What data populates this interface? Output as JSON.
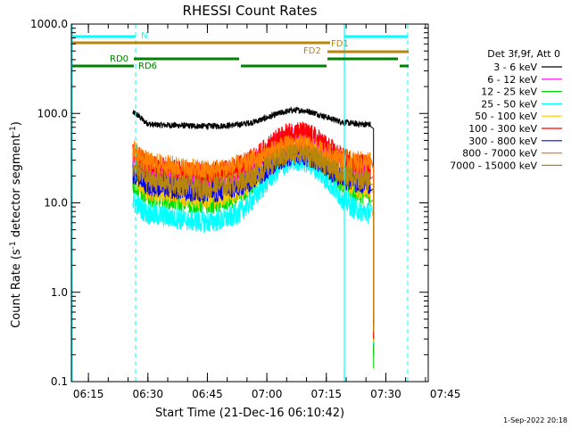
{
  "chart_data": {
    "type": "line",
    "title": "RHESSI Count Rates",
    "xlabel": "Start Time (21-Dec-16 06:10:42)",
    "ylabel_main": "Count Rate (s",
    "ylabel_sup": "-1",
    "ylabel_rest": " detector segment",
    "ylabel_sup2": "-1",
    "ylabel_end": ")",
    "yscale": "log",
    "ylim": [
      0.1,
      1000
    ],
    "xlim_minutes": [
      0,
      90
    ],
    "x_ticks": [
      {
        "label": "06:15",
        "minute": 4.3
      },
      {
        "label": "06:30",
        "minute": 19.3
      },
      {
        "label": "06:45",
        "minute": 34.3
      },
      {
        "label": "07:00",
        "minute": 49.3
      },
      {
        "label": "07:15",
        "minute": 64.3
      },
      {
        "label": "07:30",
        "minute": 79.3
      },
      {
        "label": "07:45",
        "minute": 94.3
      }
    ],
    "y_ticks": [
      {
        "label": "1000.0",
        "value": 1000
      },
      {
        "label": "100.0",
        "value": 100
      },
      {
        "label": "10.0",
        "value": 10
      },
      {
        "label": "1.0",
        "value": 1
      },
      {
        "label": "0.1",
        "value": 0.1
      }
    ],
    "legend_header": "Det 3f,9f, Att 0",
    "legend_placement": "right",
    "series": [
      {
        "name": "3 - 6 keV",
        "color": "#000000",
        "level": 75,
        "bump": 1.45
      },
      {
        "name": "6 - 12 keV",
        "color": "#ff00ff",
        "level": 22,
        "bump": 2.6
      },
      {
        "name": "12 - 25 keV",
        "color": "#00e000",
        "level": 12,
        "bump": 3.4
      },
      {
        "name": "25 - 50 keV",
        "color": "#00ffff",
        "level": 7.5,
        "bump": 4.0
      },
      {
        "name": "50 - 100 keV",
        "color": "#ffc800",
        "level": 14,
        "bump": 3.0
      },
      {
        "name": "100 - 300 keV",
        "color": "#ff0000",
        "level": 26,
        "bump": 2.4
      },
      {
        "name": "300 - 800 keV",
        "color": "#0000ff",
        "level": 16,
        "bump": 2.2
      },
      {
        "name": "800 - 7000 keV",
        "color": "#ff7f00",
        "level": 28,
        "bump": 1.6
      },
      {
        "name": "7000 - 15000 keV",
        "color": "#b8860b",
        "level": 18,
        "bump": 2.0
      }
    ],
    "data_start_minute": 15.5,
    "data_end_minute": 75.5,
    "bump_peak_minute": 57,
    "drop_minute": 76.2,
    "annotations": [
      {
        "label": "N",
        "color": "#00ffff"
      },
      {
        "label": "FD1",
        "color": "#b8860b"
      },
      {
        "label": "FD2",
        "color": "#b8860b"
      },
      {
        "label": "RD0",
        "color": "#008000"
      },
      {
        "label": "RD6",
        "color": "#008000"
      }
    ],
    "timestamp": "1-Sep-2022 20:18"
  }
}
